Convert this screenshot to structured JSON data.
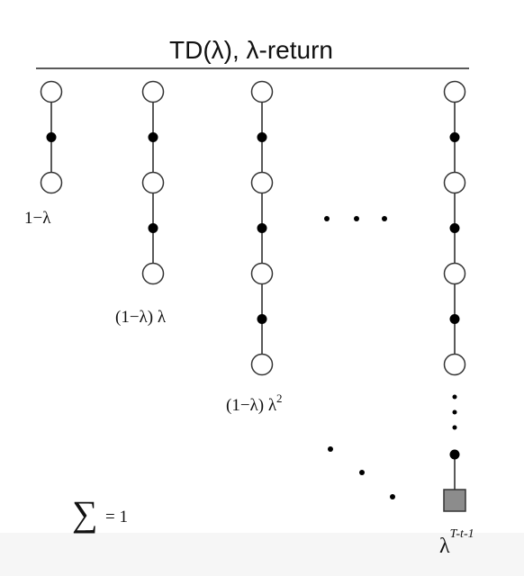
{
  "title": "TD(λ), λ-return",
  "backups": [
    {
      "label": "1−λ",
      "nodes": [
        "state",
        "action",
        "state"
      ]
    },
    {
      "label": "(1−λ) λ",
      "nodes": [
        "state",
        "action",
        "state",
        "action",
        "state"
      ]
    },
    {
      "label": "(1−λ) λ",
      "label_exponent": "2",
      "nodes": [
        "state",
        "action",
        "state",
        "action",
        "state",
        "action",
        "state"
      ]
    },
    {
      "label_base": "λ",
      "label_exponent": "T-t-1",
      "nodes": [
        "state",
        "action",
        "state",
        "action",
        "state",
        "action",
        "state",
        "ellipsis",
        "action",
        "terminal"
      ]
    }
  ],
  "sum_label": {
    "symbol": "∑",
    "text": "= 1"
  },
  "colors": {
    "state_fill": "#ffffff",
    "action_fill": "#000000",
    "terminal_fill": "#8c8c8c",
    "line": "#222222"
  }
}
